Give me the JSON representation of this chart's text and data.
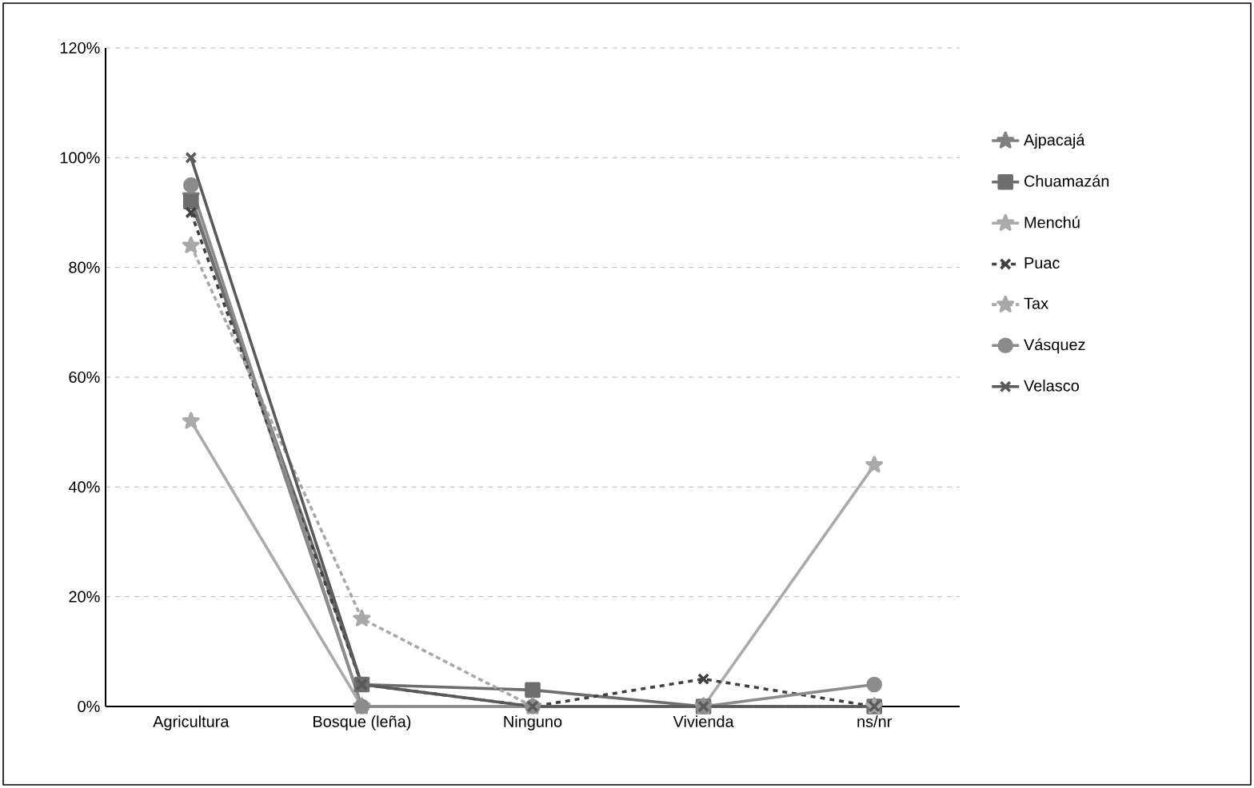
{
  "chart_data": {
    "type": "line",
    "categories": [
      "Agricultura",
      "Bosque (leña)",
      "Ninguno",
      "Vivienda",
      "ns/nr"
    ],
    "ylim": [
      0,
      120
    ],
    "yticks": [
      {
        "value": 0,
        "label": "0%"
      },
      {
        "value": 20,
        "label": "20%"
      },
      {
        "value": 40,
        "label": "40%"
      },
      {
        "value": 60,
        "label": "60%"
      },
      {
        "value": 80,
        "label": "80%"
      },
      {
        "value": 100,
        "label": "100%"
      },
      {
        "value": 120,
        "label": "120%"
      }
    ],
    "grid": "y",
    "legend": "right",
    "series": [
      {
        "name": "Ajpacajá",
        "color": "#808080",
        "marker": "star",
        "line_style": "solid",
        "values": [
          93,
          0,
          0,
          0,
          0
        ]
      },
      {
        "name": "Chuamazán",
        "color": "#6e6e6e",
        "marker": "square",
        "line_style": "solid",
        "values": [
          92,
          4,
          3,
          0,
          0
        ]
      },
      {
        "name": "Menchú",
        "color": "#aaaaaa",
        "marker": "star",
        "line_style": "solid",
        "values": [
          52,
          0,
          0,
          0,
          44
        ]
      },
      {
        "name": "Puac",
        "color": "#404040",
        "marker": "cross",
        "line_style": "dashed",
        "values": [
          90,
          4,
          0,
          5,
          0
        ]
      },
      {
        "name": "Tax",
        "color": "#a8a8a8",
        "marker": "star",
        "line_style": "dotted",
        "values": [
          84,
          16,
          0,
          0,
          0
        ]
      },
      {
        "name": "Vásquez",
        "color": "#8c8c8c",
        "marker": "circle",
        "line_style": "solid",
        "values": [
          95,
          0,
          0,
          0,
          4
        ]
      },
      {
        "name": "Velasco",
        "color": "#5a5a5a",
        "marker": "cross",
        "line_style": "solid",
        "values": [
          100,
          4,
          0,
          0,
          0
        ]
      }
    ]
  }
}
